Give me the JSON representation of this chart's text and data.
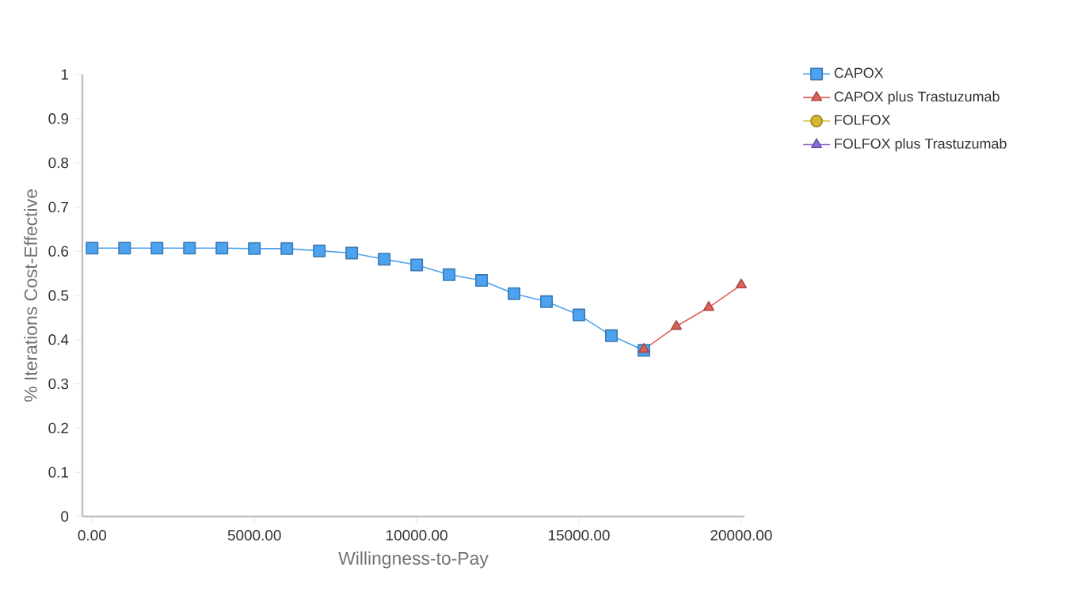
{
  "chart_data": {
    "type": "line",
    "xlabel": "Willingness-to-Pay",
    "ylabel": "% Iterations Cost-Effective",
    "xlim": [
      -300,
      20100
    ],
    "ylim": [
      0,
      1
    ],
    "xticks": [
      {
        "value": 0,
        "label": "0.00"
      },
      {
        "value": 5000,
        "label": "5000.00"
      },
      {
        "value": 10000,
        "label": "10000.00"
      },
      {
        "value": 15000,
        "label": "15000.00"
      },
      {
        "value": 20000,
        "label": "20000.00"
      }
    ],
    "yticks": [
      0,
      0.1,
      0.2,
      0.3,
      0.4,
      0.5,
      0.6,
      0.7,
      0.8,
      0.9,
      1
    ],
    "grid": false,
    "legend": "right",
    "line_style": "solid",
    "series": [
      {
        "name": "CAPOX",
        "color": "#4da3ef",
        "marker": "square",
        "x": [
          0,
          1000,
          2000,
          3000,
          4000,
          5000,
          6000,
          7000,
          8000,
          9000,
          10000,
          11000,
          12000,
          13000,
          14000,
          15000,
          16000,
          17000
        ],
        "values": [
          0.607,
          0.607,
          0.607,
          0.607,
          0.607,
          0.606,
          0.606,
          0.601,
          0.596,
          0.582,
          0.569,
          0.547,
          0.534,
          0.504,
          0.486,
          0.456,
          0.409,
          0.376
        ]
      },
      {
        "name": "CAPOX plus Trastuzumab",
        "color": "#e0605a",
        "marker": "triangle",
        "x": [
          17000,
          18000,
          19000,
          20000
        ],
        "values": [
          0.378,
          0.43,
          0.473,
          0.524
        ]
      },
      {
        "name": "FOLFOX",
        "color": "#d4b630",
        "marker": "circle"
      },
      {
        "name": "FOLFOX plus Trastuzumab",
        "color": "#8e6bd6",
        "marker": "triangle down"
      }
    ]
  }
}
